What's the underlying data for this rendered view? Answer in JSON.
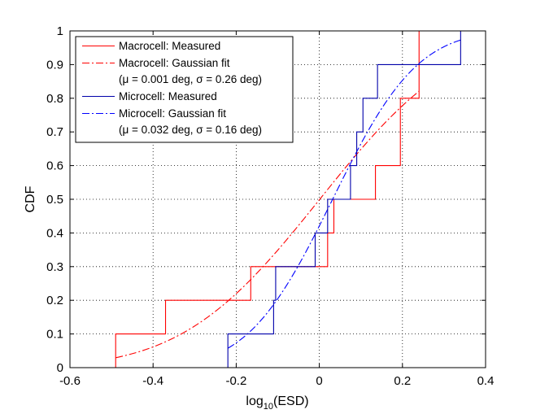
{
  "chart_data": {
    "type": "line",
    "xlabel_base": "log",
    "xlabel_sub": "10",
    "xlabel_rest": "(ESD)",
    "ylabel": "CDF",
    "xlim": [
      -0.6,
      0.4
    ],
    "ylim": [
      0,
      1
    ],
    "xticks": [
      -0.6,
      -0.4,
      -0.2,
      0,
      0.2,
      0.4
    ],
    "xtick_labels": [
      "-0.6",
      "-0.4",
      "-0.2",
      "0",
      "0.2",
      "0.4"
    ],
    "yticks": [
      0,
      0.1,
      0.2,
      0.3,
      0.4,
      0.5,
      0.6,
      0.7,
      0.8,
      0.9,
      1
    ],
    "ytick_labels": [
      "0",
      "0.1",
      "0.2",
      "0.3",
      "0.4",
      "0.5",
      "0.6",
      "0.7",
      "0.8",
      "0.9",
      "1"
    ],
    "grid": true,
    "legend_position": "top-left",
    "legend": [
      {
        "lines": [
          "Macrocell: Measured"
        ],
        "color": "#ff0000",
        "dash": "solid"
      },
      {
        "lines": [
          "Macrocell: Gaussian fit",
          "(μ = 0.001 deg, σ = 0.26 deg)"
        ],
        "color": "#ff0000",
        "dash": "dashdot"
      },
      {
        "lines": [
          "Microcell: Measured"
        ],
        "color": "#0000aa",
        "dash": "solid"
      },
      {
        "lines": [
          "Microcell: Gaussian fit",
          "(μ = 0.032 deg, σ = 0.16 deg)"
        ],
        "color": "#0000ff",
        "dash": "dashdot"
      }
    ],
    "series": [
      {
        "name": "Macrocell: Measured",
        "style": "step",
        "color": "#ff0000",
        "x": [
          -0.49,
          -0.37,
          -0.165,
          0.02,
          0.035,
          0.135,
          0.195,
          0.24
        ],
        "y_start": 0,
        "y": [
          0.1,
          0.2,
          0.3,
          0.4,
          0.5,
          0.6,
          0.8,
          1.0
        ]
      },
      {
        "name": "Macrocell: Gaussian fit",
        "style": "normal_cdf",
        "color": "#ff0000",
        "mu": 0.001,
        "sigma": 0.26,
        "x_range": [
          -0.49,
          0.24
        ]
      },
      {
        "name": "Microcell: Measured",
        "style": "step",
        "color": "#0000aa",
        "x": [
          -0.22,
          -0.11,
          -0.105,
          -0.01,
          0.02,
          0.075,
          0.09,
          0.105,
          0.14,
          0.23,
          0.34
        ],
        "y_start": 0,
        "y": [
          0.1,
          0.2,
          0.3,
          0.4,
          0.5,
          0.6,
          0.7,
          0.8,
          0.9,
          0.9,
          1.0
        ]
      },
      {
        "name": "Microcell: Gaussian fit",
        "style": "normal_cdf",
        "color": "#0000ff",
        "mu": 0.032,
        "sigma": 0.16,
        "x_range": [
          -0.22,
          0.34
        ]
      }
    ]
  }
}
